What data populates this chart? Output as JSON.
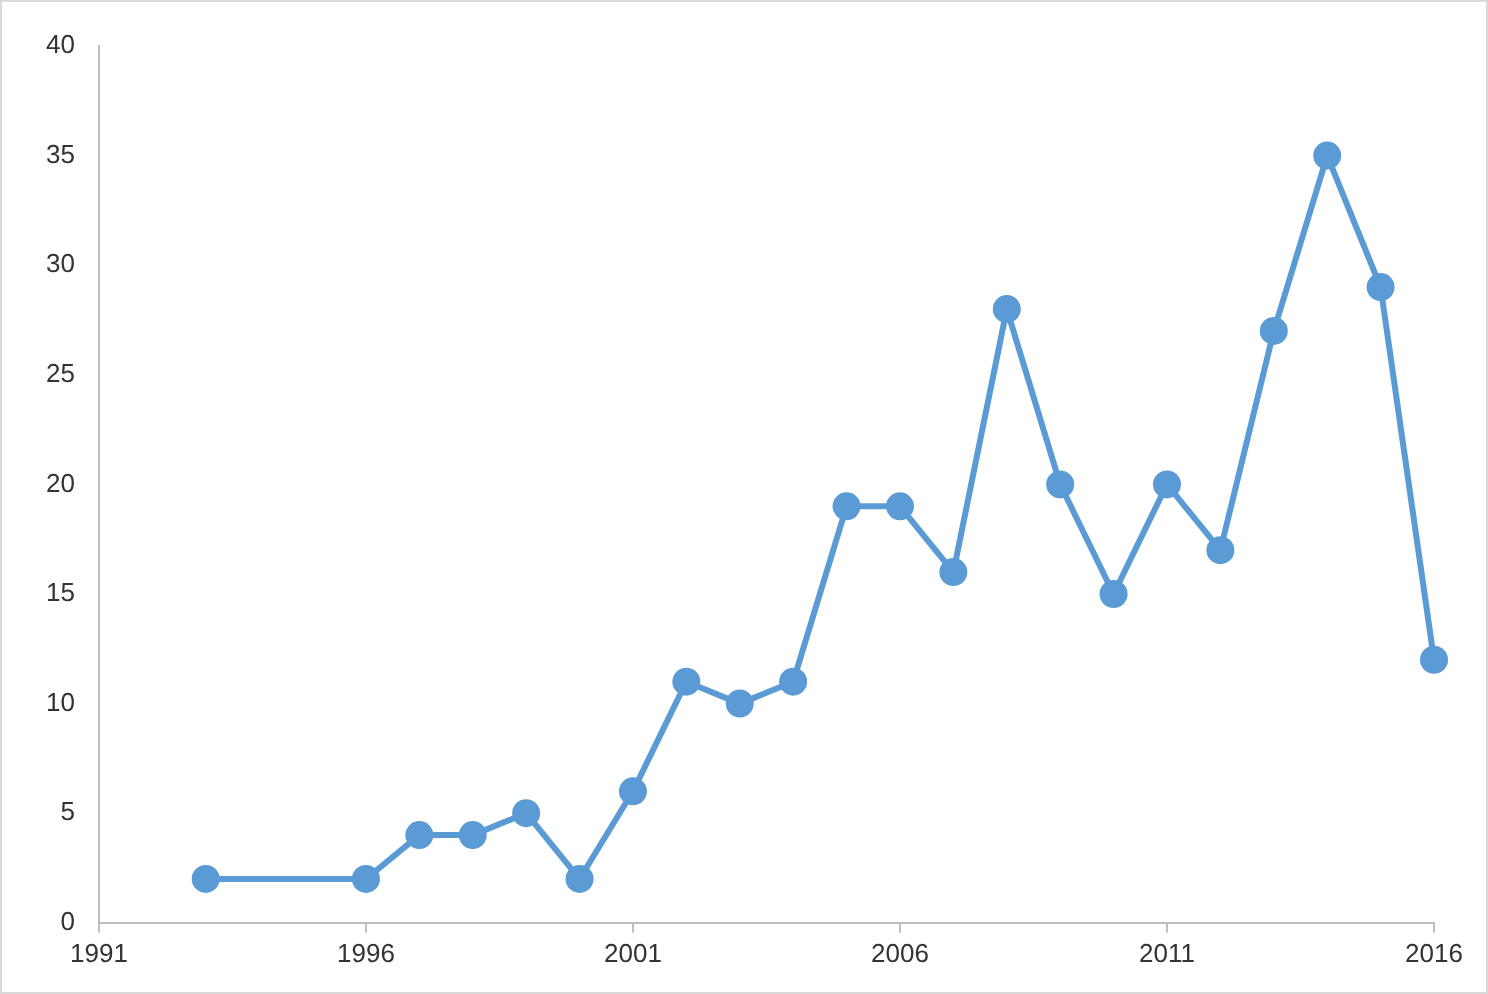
{
  "chart_data": {
    "type": "line",
    "x": [
      1993,
      1996,
      1997,
      1998,
      1999,
      2000,
      2001,
      2002,
      2003,
      2004,
      2005,
      2006,
      2007,
      2008,
      2009,
      2010,
      2011,
      2012,
      2013,
      2014,
      2015,
      2016
    ],
    "series": [
      {
        "color": "#5b9bd5",
        "values": [
          2,
          2,
          4,
          4,
          5,
          2,
          6,
          11,
          10,
          11,
          19,
          19,
          16,
          28,
          20,
          15,
          20,
          17,
          27,
          35,
          29,
          12
        ]
      }
    ],
    "xlim": [
      1991,
      2016
    ],
    "xticks": [
      1991,
      1996,
      2001,
      2006,
      2011,
      2016
    ],
    "ylim": [
      0,
      40
    ],
    "yticks": [
      0,
      5,
      10,
      15,
      20,
      25,
      30,
      35,
      40
    ],
    "grid": false,
    "legend": false,
    "marker": "circle",
    "line_style": "solid"
  }
}
